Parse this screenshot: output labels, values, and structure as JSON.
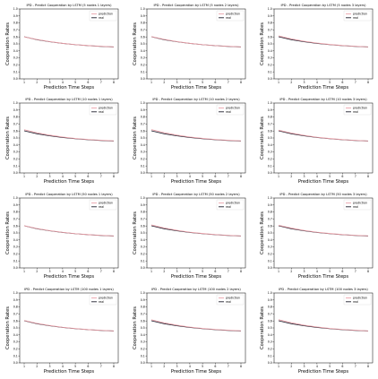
{
  "figure": {
    "colors": {
      "prediction": "#e8a0a8",
      "real": "#1f1f2e",
      "axes": "#000000"
    }
  },
  "chart_data": [
    {
      "type": "line",
      "title": "IPD - Predict Cooperation by LSTM (5 nodes 1 layers)",
      "xlabel": "Prediction Time Steps",
      "ylabel": "Cooperation Rates",
      "x": [
        1,
        2,
        3,
        4,
        5,
        6,
        7,
        8
      ],
      "ylim": [
        0.0,
        1.0
      ],
      "xticks": [
        1,
        2,
        3,
        4,
        5,
        6,
        7,
        8
      ],
      "yticks": [
        "0.0",
        "0.1",
        "0.2",
        "0.3",
        "0.4",
        "0.5",
        "0.6",
        "0.7",
        "0.8",
        "0.9",
        "1.0"
      ],
      "legend": "top-right",
      "grid": false,
      "series": [
        {
          "name": "prediction",
          "values": [
            0.6,
            0.563,
            0.533,
            0.508,
            0.49,
            0.476,
            0.466,
            0.458
          ]
        },
        {
          "name": "real",
          "values": [
            0.602,
            0.56,
            0.53,
            0.507,
            0.489,
            0.475,
            0.464,
            0.456
          ]
        }
      ]
    },
    {
      "type": "line",
      "title": "IPD - Predict Cooperation by LSTM (5 nodes 2 layers)",
      "xlabel": "Prediction Time Steps",
      "ylabel": "Cooperation Rates",
      "x": [
        1,
        2,
        3,
        4,
        5,
        6,
        7,
        8
      ],
      "ylim": [
        0.0,
        1.0
      ],
      "xticks": [
        1,
        2,
        3,
        4,
        5,
        6,
        7,
        8
      ],
      "yticks": [
        "0.0",
        "0.1",
        "0.2",
        "0.3",
        "0.4",
        "0.5",
        "0.6",
        "0.7",
        "0.8",
        "0.9",
        "1.0"
      ],
      "legend": "top-right",
      "grid": false,
      "series": [
        {
          "name": "prediction",
          "values": [
            0.605,
            0.565,
            0.533,
            0.508,
            0.489,
            0.475,
            0.465,
            0.457
          ]
        },
        {
          "name": "real",
          "values": [
            0.602,
            0.56,
            0.53,
            0.507,
            0.489,
            0.475,
            0.464,
            0.456
          ]
        }
      ]
    },
    {
      "type": "line",
      "title": "IPD - Predict Cooperation by LSTM (5 nodes 3 layers)",
      "xlabel": "Prediction Time Steps",
      "ylabel": "Cooperation Rates",
      "x": [
        1,
        2,
        3,
        4,
        5,
        6,
        7,
        8
      ],
      "ylim": [
        0.0,
        1.0
      ],
      "xticks": [
        1,
        2,
        3,
        4,
        5,
        6,
        7,
        8
      ],
      "yticks": [
        "0.0",
        "0.1",
        "0.2",
        "0.3",
        "0.4",
        "0.5",
        "0.6",
        "0.7",
        "0.8",
        "0.9",
        "1.0"
      ],
      "legend": "top-right",
      "grid": false,
      "series": [
        {
          "name": "prediction",
          "values": [
            0.615,
            0.572,
            0.538,
            0.512,
            0.492,
            0.477,
            0.466,
            0.458
          ]
        },
        {
          "name": "real",
          "values": [
            0.602,
            0.56,
            0.53,
            0.507,
            0.489,
            0.475,
            0.464,
            0.456
          ]
        }
      ]
    },
    {
      "type": "line",
      "title": "IPD - Predict Cooperation by LSTM (10 nodes 1 layers)",
      "xlabel": "Prediction Time Steps",
      "ylabel": "Cooperation Rates",
      "x": [
        1,
        2,
        3,
        4,
        5,
        6,
        7,
        8
      ],
      "ylim": [
        0.0,
        1.0
      ],
      "xticks": [
        1,
        2,
        3,
        4,
        5,
        6,
        7,
        8
      ],
      "yticks": [
        "0.0",
        "0.1",
        "0.2",
        "0.3",
        "0.4",
        "0.5",
        "0.6",
        "0.7",
        "0.8",
        "0.9",
        "1.0"
      ],
      "legend": "top-right",
      "grid": false,
      "series": [
        {
          "name": "prediction",
          "values": [
            0.618,
            0.575,
            0.54,
            0.513,
            0.493,
            0.478,
            0.467,
            0.459
          ]
        },
        {
          "name": "real",
          "values": [
            0.602,
            0.56,
            0.53,
            0.507,
            0.489,
            0.475,
            0.464,
            0.456
          ]
        }
      ]
    },
    {
      "type": "line",
      "title": "IPD - Predict Cooperation by LSTM (10 nodes 2 layers)",
      "xlabel": "Prediction Time Steps",
      "ylabel": "Cooperation Rates",
      "x": [
        1,
        2,
        3,
        4,
        5,
        6,
        7,
        8
      ],
      "ylim": [
        0.0,
        1.0
      ],
      "xticks": [
        1,
        2,
        3,
        4,
        5,
        6,
        7,
        8
      ],
      "yticks": [
        "0.0",
        "0.1",
        "0.2",
        "0.3",
        "0.4",
        "0.5",
        "0.6",
        "0.7",
        "0.8",
        "0.9",
        "1.0"
      ],
      "legend": "top-right",
      "grid": false,
      "series": [
        {
          "name": "prediction",
          "values": [
            0.62,
            0.576,
            0.541,
            0.514,
            0.494,
            0.479,
            0.467,
            0.459
          ]
        },
        {
          "name": "real",
          "values": [
            0.602,
            0.56,
            0.53,
            0.507,
            0.489,
            0.475,
            0.464,
            0.456
          ]
        }
      ]
    },
    {
      "type": "line",
      "title": "IPD - Predict Cooperation by LSTM (10 nodes 3 layers)",
      "xlabel": "Prediction Time Steps",
      "ylabel": "Cooperation Rates",
      "x": [
        1,
        2,
        3,
        4,
        5,
        6,
        7,
        8
      ],
      "ylim": [
        0.0,
        1.0
      ],
      "xticks": [
        1,
        2,
        3,
        4,
        5,
        6,
        7,
        8
      ],
      "yticks": [
        "0.0",
        "0.1",
        "0.2",
        "0.3",
        "0.4",
        "0.5",
        "0.6",
        "0.7",
        "0.8",
        "0.9",
        "1.0"
      ],
      "legend": "top-right",
      "grid": false,
      "series": [
        {
          "name": "prediction",
          "values": [
            0.612,
            0.57,
            0.537,
            0.511,
            0.492,
            0.477,
            0.466,
            0.458
          ]
        },
        {
          "name": "real",
          "values": [
            0.602,
            0.56,
            0.53,
            0.507,
            0.489,
            0.475,
            0.464,
            0.456
          ]
        }
      ]
    },
    {
      "type": "line",
      "title": "IPD - Predict Cooperation by LSTM (50 nodes 1 layers)",
      "xlabel": "Prediction Time Steps",
      "ylabel": "Cooperation Rates",
      "x": [
        1,
        2,
        3,
        4,
        5,
        6,
        7,
        8
      ],
      "ylim": [
        0.0,
        1.0
      ],
      "xticks": [
        1,
        2,
        3,
        4,
        5,
        6,
        7,
        8
      ],
      "yticks": [
        "0.0",
        "0.1",
        "0.2",
        "0.3",
        "0.4",
        "0.5",
        "0.6",
        "0.7",
        "0.8",
        "0.9",
        "1.0"
      ],
      "legend": "top-right",
      "grid": false,
      "series": [
        {
          "name": "prediction",
          "values": [
            0.604,
            0.564,
            0.533,
            0.509,
            0.49,
            0.476,
            0.466,
            0.458
          ]
        },
        {
          "name": "real",
          "values": [
            0.602,
            0.56,
            0.53,
            0.507,
            0.489,
            0.475,
            0.464,
            0.456
          ]
        }
      ]
    },
    {
      "type": "line",
      "title": "IPD - Predict Cooperation by LSTM (50 nodes 2 layers)",
      "xlabel": "Prediction Time Steps",
      "ylabel": "Cooperation Rates",
      "x": [
        1,
        2,
        3,
        4,
        5,
        6,
        7,
        8
      ],
      "ylim": [
        0.0,
        1.0
      ],
      "xticks": [
        1,
        2,
        3,
        4,
        5,
        6,
        7,
        8
      ],
      "yticks": [
        "0.0",
        "0.1",
        "0.2",
        "0.3",
        "0.4",
        "0.5",
        "0.6",
        "0.7",
        "0.8",
        "0.9",
        "1.0"
      ],
      "legend": "top-right",
      "grid": false,
      "series": [
        {
          "name": "prediction",
          "values": [
            0.614,
            0.571,
            0.537,
            0.511,
            0.492,
            0.477,
            0.466,
            0.458
          ]
        },
        {
          "name": "real",
          "values": [
            0.602,
            0.56,
            0.53,
            0.507,
            0.489,
            0.475,
            0.464,
            0.456
          ]
        }
      ]
    },
    {
      "type": "line",
      "title": "IPD - Predict Cooperation by LSTM (50 nodes 3 layers)",
      "xlabel": "Prediction Time Steps",
      "ylabel": "Cooperation Rates",
      "x": [
        1,
        2,
        3,
        4,
        5,
        6,
        7,
        8
      ],
      "ylim": [
        0.0,
        1.0
      ],
      "xticks": [
        1,
        2,
        3,
        4,
        5,
        6,
        7,
        8
      ],
      "yticks": [
        "0.0",
        "0.1",
        "0.2",
        "0.3",
        "0.4",
        "0.5",
        "0.6",
        "0.7",
        "0.8",
        "0.9",
        "1.0"
      ],
      "legend": "top-right",
      "grid": false,
      "series": [
        {
          "name": "prediction",
          "values": [
            0.61,
            0.569,
            0.536,
            0.511,
            0.492,
            0.477,
            0.466,
            0.459
          ]
        },
        {
          "name": "real",
          "values": [
            0.602,
            0.56,
            0.53,
            0.507,
            0.489,
            0.475,
            0.464,
            0.456
          ]
        }
      ]
    },
    {
      "type": "line",
      "title": "IPD - Predict Cooperation by LSTM (100 nodes 1 layers)",
      "xlabel": "Prediction Time Steps",
      "ylabel": "Cooperation Rates",
      "x": [
        1,
        2,
        3,
        4,
        5,
        6,
        7,
        8
      ],
      "ylim": [
        0.0,
        1.0
      ],
      "xticks": [
        1,
        2,
        3,
        4,
        5,
        6,
        7,
        8
      ],
      "yticks": [
        "0.0",
        "0.1",
        "0.2",
        "0.3",
        "0.4",
        "0.5",
        "0.6",
        "0.7",
        "0.8",
        "0.9",
        "1.0"
      ],
      "legend": "top-right",
      "grid": false,
      "series": [
        {
          "name": "prediction",
          "values": [
            0.606,
            0.565,
            0.534,
            0.509,
            0.491,
            0.476,
            0.466,
            0.458
          ]
        },
        {
          "name": "real",
          "values": [
            0.602,
            0.56,
            0.53,
            0.507,
            0.489,
            0.475,
            0.464,
            0.456
          ]
        }
      ]
    },
    {
      "type": "line",
      "title": "IPD - Predict Cooperation by LSTM (100 nodes 2 layers)",
      "xlabel": "Prediction Time Steps",
      "ylabel": "Cooperation Rates",
      "x": [
        1,
        2,
        3,
        4,
        5,
        6,
        7,
        8
      ],
      "ylim": [
        0.0,
        1.0
      ],
      "xticks": [
        1,
        2,
        3,
        4,
        5,
        6,
        7,
        8
      ],
      "yticks": [
        "0.0",
        "0.1",
        "0.2",
        "0.3",
        "0.4",
        "0.5",
        "0.6",
        "0.7",
        "0.8",
        "0.9",
        "1.0"
      ],
      "legend": "top-right",
      "grid": false,
      "series": [
        {
          "name": "prediction",
          "values": [
            0.616,
            0.573,
            0.539,
            0.512,
            0.493,
            0.478,
            0.467,
            0.459
          ]
        },
        {
          "name": "real",
          "values": [
            0.602,
            0.56,
            0.53,
            0.507,
            0.489,
            0.475,
            0.464,
            0.456
          ]
        }
      ]
    },
    {
      "type": "line",
      "title": "IPD - Predict Cooperation by LSTM (100 nodes 3 layers)",
      "xlabel": "Prediction Time Steps",
      "ylabel": "Cooperation Rates",
      "x": [
        1,
        2,
        3,
        4,
        5,
        6,
        7,
        8
      ],
      "ylim": [
        0.0,
        1.0
      ],
      "xticks": [
        1,
        2,
        3,
        4,
        5,
        6,
        7,
        8
      ],
      "yticks": [
        "0.0",
        "0.1",
        "0.2",
        "0.3",
        "0.4",
        "0.5",
        "0.6",
        "0.7",
        "0.8",
        "0.9",
        "1.0"
      ],
      "legend": "top-right",
      "grid": false,
      "series": [
        {
          "name": "prediction",
          "values": [
            0.618,
            0.574,
            0.539,
            0.513,
            0.493,
            0.478,
            0.467,
            0.458
          ]
        },
        {
          "name": "real",
          "values": [
            0.602,
            0.56,
            0.53,
            0.507,
            0.489,
            0.475,
            0.464,
            0.456
          ]
        }
      ]
    }
  ]
}
